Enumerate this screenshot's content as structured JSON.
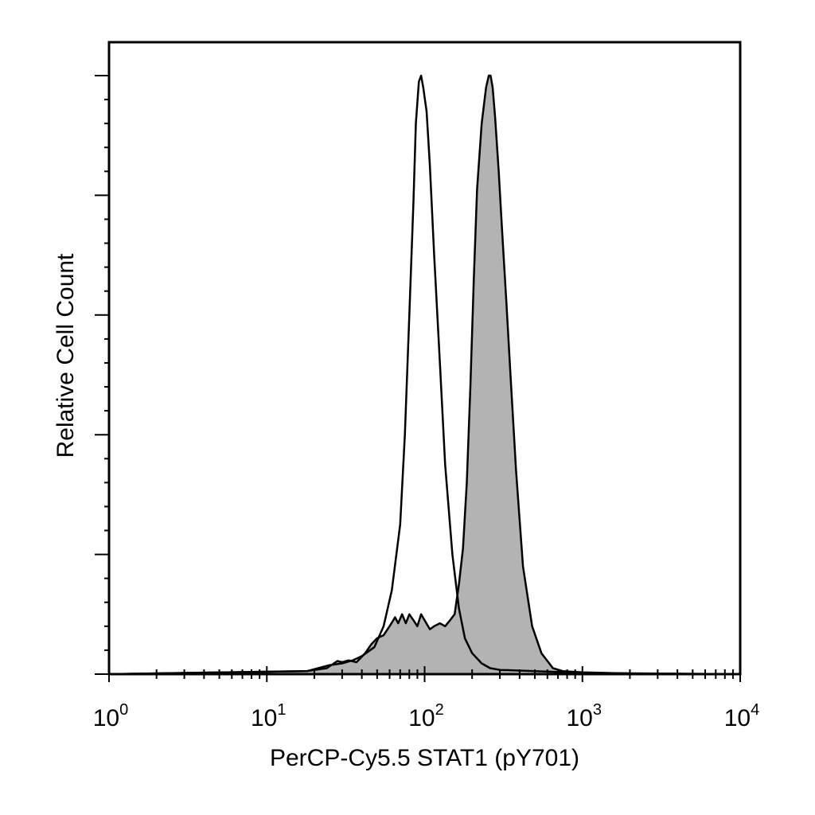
{
  "chart_data": {
    "type": "area",
    "title": "",
    "xlabel": "PerCP-Cy5.5 STAT1 (pY701)",
    "ylabel": "Relative Cell Count",
    "x_scale": "log",
    "xlim": [
      1,
      10000
    ],
    "ylim": [
      0,
      105
    ],
    "grid": false,
    "x_ticks": [
      {
        "base": "10",
        "exp": "0",
        "value": 1
      },
      {
        "base": "10",
        "exp": "1",
        "value": 10
      },
      {
        "base": "10",
        "exp": "2",
        "value": 100
      },
      {
        "base": "10",
        "exp": "3",
        "value": 1000
      },
      {
        "base": "10",
        "exp": "4",
        "value": 10000
      }
    ],
    "y_major_ticks": [
      0,
      20,
      40,
      60,
      80,
      100
    ],
    "series": [
      {
        "style": "outline",
        "color": "#000000",
        "x": [
          1,
          5.5,
          18,
          25,
          30,
          35,
          40,
          48,
          55,
          62,
          70,
          75,
          80,
          85,
          88,
          92,
          95,
          98,
          103,
          108,
          115,
          125,
          135,
          150,
          165,
          180,
          200,
          230,
          260,
          300,
          500,
          1000,
          10000
        ],
        "y": [
          0,
          0.3,
          0.5,
          1.5,
          1.8,
          2.3,
          3.0,
          4.5,
          8.0,
          14,
          25,
          40,
          60,
          79,
          92,
          99,
          100,
          98,
          94,
          85,
          70,
          52,
          35,
          20,
          11,
          6.0,
          3.5,
          1.8,
          1.0,
          0.7,
          0.5,
          0.2,
          0
        ]
      },
      {
        "style": "filled",
        "color": "#000000",
        "fill": "#b3b3b3",
        "x": [
          1,
          18,
          24,
          28,
          30,
          33,
          37,
          42,
          46,
          50,
          55,
          60,
          65,
          68,
          72,
          76,
          80,
          85,
          90,
          95,
          100,
          108,
          115,
          125,
          135,
          145,
          155,
          165,
          175,
          185,
          195,
          205,
          215,
          230,
          245,
          255,
          262,
          270,
          280,
          295,
          310,
          330,
          350,
          380,
          420,
          480,
          550,
          650,
          750,
          1000,
          2000,
          10000
        ],
        "y": [
          0,
          0.5,
          1.0,
          2.2,
          2.0,
          2.3,
          2.0,
          3.5,
          5.0,
          6.0,
          6.5,
          8.0,
          9.5,
          8.5,
          10.0,
          8.5,
          10.0,
          9.0,
          8.0,
          10.0,
          9.0,
          7.5,
          8.0,
          8.5,
          8.0,
          9.0,
          10.0,
          15,
          21,
          32,
          48,
          66,
          81,
          92,
          98,
          100,
          100,
          98,
          93,
          84,
          74,
          62,
          50,
          34,
          18,
          8.0,
          3.5,
          1.0,
          0.5,
          0.3,
          0.1,
          0
        ]
      }
    ]
  }
}
